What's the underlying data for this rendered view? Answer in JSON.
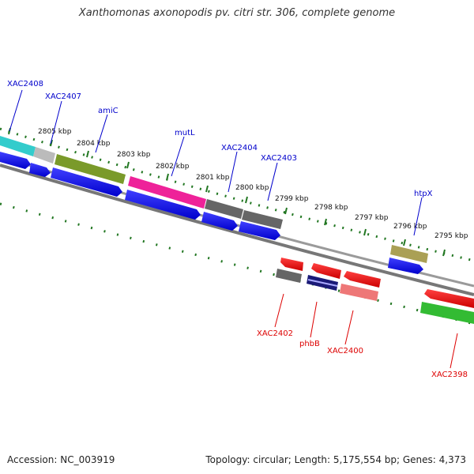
{
  "title": "Xanthomonas axonopodis pv. citri str. 306, complete genome",
  "footer": {
    "accession": "Accession: NC_003919",
    "info": "Topology: circular; Length: 5,175,554 bp; Genes: 4,373"
  },
  "scale_labels": [
    "2805 kbp",
    "2804 kbp",
    "2803 kbp",
    "2802 kbp",
    "2801 kbp",
    "2800 kbp",
    "2799 kbp",
    "2798 kbp",
    "2797 kbp",
    "2796 kbp",
    "2795 kbp"
  ],
  "forward_genes": [
    "XAC2408",
    "XAC2407",
    "amiC",
    "mutL",
    "XAC2404",
    "XAC2403",
    "htpX"
  ],
  "reverse_genes": [
    "XAC2402",
    "phbB",
    "XAC2400",
    "XAC2398"
  ],
  "colors": {
    "forward_label": "#0000cc",
    "reverse_label": "#dd0000",
    "cds_forward": "#0000ee",
    "cds_reverse": "#ee0000",
    "backbone": "#888888",
    "ticks": "#227722"
  }
}
